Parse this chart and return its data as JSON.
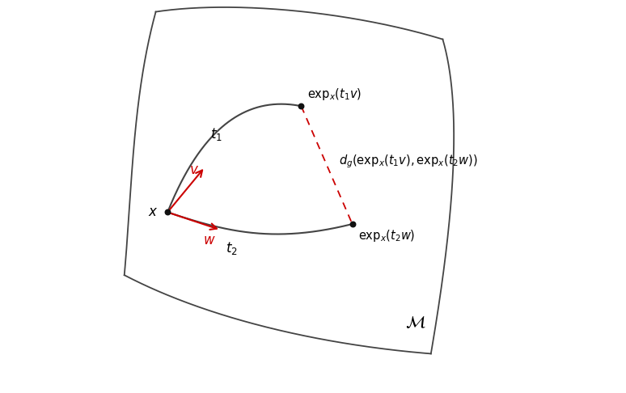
{
  "background_color": "#ffffff",
  "manifold_color": "#444444",
  "curve_color": "#444444",
  "red_color": "#cc0000",
  "dot_color": "#111111",
  "label_x": "$x$",
  "label_exp_tv": "$\\mathrm{exp}_x(t_1v)$",
  "label_exp_tw": "$\\mathrm{exp}_x(t_2w)$",
  "label_dg": "$d_g(\\mathrm{exp}_x(t_1v), \\mathrm{exp}_x(t_2w))$",
  "label_t1": "$t_1$",
  "label_t2": "$t_2$",
  "label_v": "$v$",
  "label_w": "$w$",
  "label_M": "$\\mathcal{M}$",
  "figsize": [
    7.74,
    4.86
  ],
  "dpi": 100
}
